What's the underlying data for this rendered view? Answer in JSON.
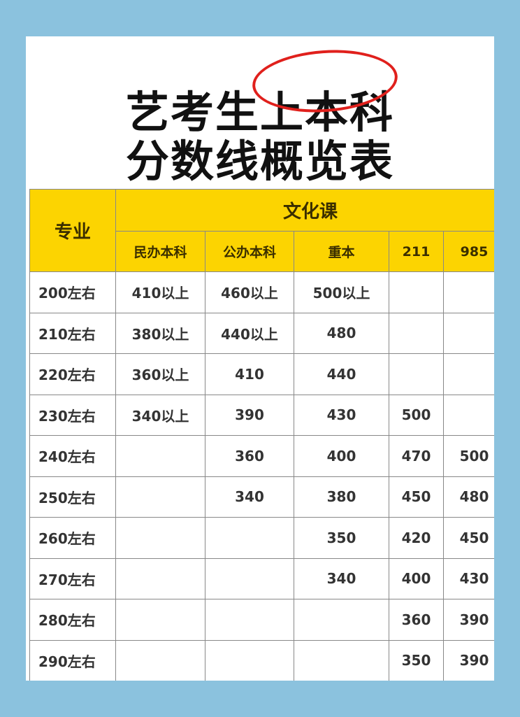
{
  "title": {
    "line1": "艺考生上本科",
    "line2": "分数线概览表",
    "circled": "上本科",
    "circle_color": "#e0201c"
  },
  "colors": {
    "background": "#8bc2de",
    "header": "#fcd401"
  },
  "table": {
    "major_header": "专业",
    "culture_header": "文化课",
    "sub_headers": [
      "民办本科",
      "公办本科",
      "重本",
      "211",
      "985"
    ],
    "rows": [
      [
        "200左右",
        "410以上",
        "460以上",
        "500以上",
        "",
        ""
      ],
      [
        "210左右",
        "380以上",
        "440以上",
        "480",
        "",
        ""
      ],
      [
        "220左右",
        "360以上",
        "410",
        "440",
        "",
        ""
      ],
      [
        "230左右",
        "340以上",
        "390",
        "430",
        "500",
        ""
      ],
      [
        "240左右",
        "",
        "360",
        "400",
        "470",
        "500"
      ],
      [
        "250左右",
        "",
        "340",
        "380",
        "450",
        "480"
      ],
      [
        "260左右",
        "",
        "",
        "350",
        "420",
        "450"
      ],
      [
        "270左右",
        "",
        "",
        "340",
        "400",
        "430"
      ],
      [
        "280左右",
        "",
        "",
        "",
        "360",
        "390"
      ],
      [
        "290左右",
        "",
        "",
        "",
        "350",
        "390"
      ]
    ]
  }
}
